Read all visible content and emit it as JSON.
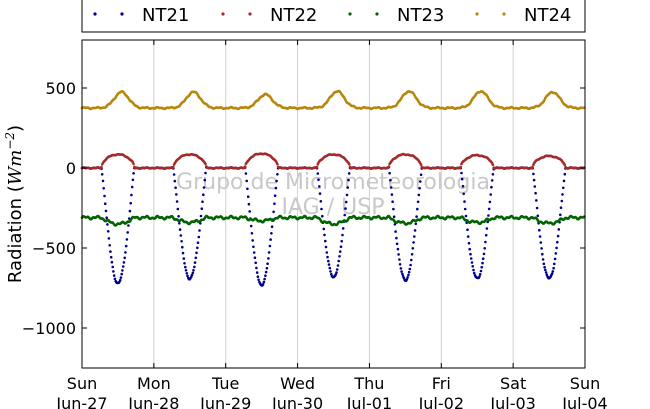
{
  "chart_data": {
    "type": "scatter",
    "title": "",
    "xlabel": "",
    "ylabel": "Radiation (Wm⁻²)",
    "ylabel_text": "Radiation (",
    "ylabel_unit": "Wm",
    "ylabel_exp": "−2",
    "ylabel_close": ")",
    "ylim": [
      -1250,
      800
    ],
    "xlim_days": [
      0,
      7
    ],
    "yticks": [
      {
        "value": 500,
        "label": "500"
      },
      {
        "value": 0,
        "label": "0"
      },
      {
        "value": -500,
        "label": "−500"
      },
      {
        "value": -1000,
        "label": "−1000"
      }
    ],
    "xticks": [
      {
        "day": 0,
        "weekday": "Sun",
        "date": "Jun-27"
      },
      {
        "day": 1,
        "weekday": "Mon",
        "date": "Jun-28"
      },
      {
        "day": 2,
        "weekday": "Tue",
        "date": "Jun-29"
      },
      {
        "day": 3,
        "weekday": "Wed",
        "date": "Jun-30"
      },
      {
        "day": 4,
        "weekday": "Thu",
        "date": "Jul-01"
      },
      {
        "day": 5,
        "weekday": "Fri",
        "date": "Jul-02"
      },
      {
        "day": 6,
        "weekday": "Sat",
        "date": "Jul-03"
      },
      {
        "day": 7,
        "weekday": "Sun",
        "date": "Jul-04"
      }
    ],
    "grid": "vertical",
    "legend": "top",
    "watermark": [
      "Grupo de Micrometeorologia",
      "IAG / USP"
    ],
    "series": [
      {
        "name": "NT21",
        "color": "#00008b",
        "daily_min": [
          -720,
          -690,
          -730,
          -680,
          -700,
          -690,
          -690
        ],
        "night_value": 0
      },
      {
        "name": "NT22",
        "color": "#a52a2a",
        "daily_peak": [
          85,
          85,
          90,
          85,
          85,
          80,
          75
        ],
        "night_value": 0
      },
      {
        "name": "NT23",
        "color": "#006400",
        "daily_min": [
          -350,
          -340,
          -330,
          -350,
          -345,
          -340,
          -345
        ],
        "night_value": -310
      },
      {
        "name": "NT24",
        "color": "#b8860b",
        "daily_peak": [
          475,
          475,
          460,
          480,
          480,
          480,
          475
        ],
        "night_value": 375
      }
    ]
  }
}
